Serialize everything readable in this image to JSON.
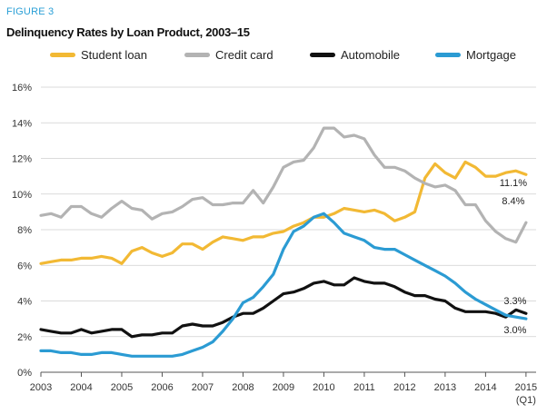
{
  "figure_label": "FIGURE 3",
  "title": "Delinquency Rates by Loan Product, 2003–15",
  "chart_data": {
    "type": "line",
    "title": "Delinquency Rates by Loan Product, 2003–15",
    "xlabel": "",
    "ylabel": "",
    "xlim": [
      2003,
      2015.25
    ],
    "ylim": [
      0,
      16
    ],
    "y_ticks": [
      "0%",
      "2%",
      "4%",
      "6%",
      "8%",
      "10%",
      "12%",
      "14%",
      "16%"
    ],
    "x_ticks": [
      "2003",
      "2004",
      "2005",
      "2006",
      "2007",
      "2008",
      "2009",
      "2010",
      "2011",
      "2012",
      "2013",
      "2014",
      "2015"
    ],
    "x_tick_sublabel": "(Q1)",
    "grid": "horizontal",
    "legend": "top",
    "x": [
      2003.0,
      2003.25,
      2003.5,
      2003.75,
      2004.0,
      2004.25,
      2004.5,
      2004.75,
      2005.0,
      2005.25,
      2005.5,
      2005.75,
      2006.0,
      2006.25,
      2006.5,
      2006.75,
      2007.0,
      2007.25,
      2007.5,
      2007.75,
      2008.0,
      2008.25,
      2008.5,
      2008.75,
      2009.0,
      2009.25,
      2009.5,
      2009.75,
      2010.0,
      2010.25,
      2010.5,
      2010.75,
      2011.0,
      2011.25,
      2011.5,
      2011.75,
      2012.0,
      2012.25,
      2012.5,
      2012.75,
      2013.0,
      2013.25,
      2013.5,
      2013.75,
      2014.0,
      2014.25,
      2014.5,
      2014.75,
      2015.0
    ],
    "series": [
      {
        "name": "Student loan",
        "color": "#f2b934",
        "end_label": "11.1%",
        "values": [
          6.1,
          6.2,
          6.3,
          6.3,
          6.4,
          6.4,
          6.5,
          6.4,
          6.1,
          6.8,
          7.0,
          6.7,
          6.5,
          6.7,
          7.2,
          7.2,
          6.9,
          7.3,
          7.6,
          7.5,
          7.4,
          7.6,
          7.6,
          7.8,
          7.9,
          8.2,
          8.4,
          8.7,
          8.7,
          8.9,
          9.2,
          9.1,
          9.0,
          9.1,
          8.9,
          8.5,
          8.7,
          9.0,
          10.9,
          11.7,
          11.2,
          10.9,
          11.8,
          11.5,
          11.0,
          11.0,
          11.2,
          11.3,
          11.1
        ]
      },
      {
        "name": "Credit card",
        "color": "#b3b3b3",
        "end_label": "8.4%",
        "values": [
          8.8,
          8.9,
          8.7,
          9.3,
          9.3,
          8.9,
          8.7,
          9.2,
          9.6,
          9.2,
          9.1,
          8.6,
          8.9,
          9.0,
          9.3,
          9.7,
          9.8,
          9.4,
          9.4,
          9.5,
          9.5,
          10.2,
          9.5,
          10.4,
          11.5,
          11.8,
          11.9,
          12.6,
          13.7,
          13.7,
          13.2,
          13.3,
          13.1,
          12.2,
          11.5,
          11.5,
          11.3,
          10.9,
          10.6,
          10.4,
          10.5,
          10.2,
          9.4,
          9.4,
          8.5,
          7.9,
          7.5,
          7.3,
          8.4
        ]
      },
      {
        "name": "Automobile",
        "color": "#111111",
        "end_label": "3.3%",
        "values": [
          2.4,
          2.3,
          2.2,
          2.2,
          2.4,
          2.2,
          2.3,
          2.4,
          2.4,
          2.0,
          2.1,
          2.1,
          2.2,
          2.2,
          2.6,
          2.7,
          2.6,
          2.6,
          2.8,
          3.1,
          3.3,
          3.3,
          3.6,
          4.0,
          4.4,
          4.5,
          4.7,
          5.0,
          5.1,
          4.9,
          4.9,
          5.3,
          5.1,
          5.0,
          5.0,
          4.8,
          4.5,
          4.3,
          4.3,
          4.1,
          4.0,
          3.6,
          3.4,
          3.4,
          3.4,
          3.3,
          3.1,
          3.5,
          3.3
        ]
      },
      {
        "name": "Mortgage",
        "color": "#2b9bd3",
        "end_label": "3.0%",
        "values": [
          1.2,
          1.2,
          1.1,
          1.1,
          1.0,
          1.0,
          1.1,
          1.1,
          1.0,
          0.9,
          0.9,
          0.9,
          0.9,
          0.9,
          1.0,
          1.2,
          1.4,
          1.7,
          2.3,
          3.0,
          3.9,
          4.2,
          4.8,
          5.5,
          6.9,
          7.9,
          8.2,
          8.7,
          8.9,
          8.4,
          7.8,
          7.6,
          7.4,
          7.0,
          6.9,
          6.9,
          6.6,
          6.3,
          6.0,
          5.7,
          5.4,
          5.0,
          4.5,
          4.1,
          3.8,
          3.5,
          3.2,
          3.1,
          3.0
        ]
      }
    ]
  }
}
